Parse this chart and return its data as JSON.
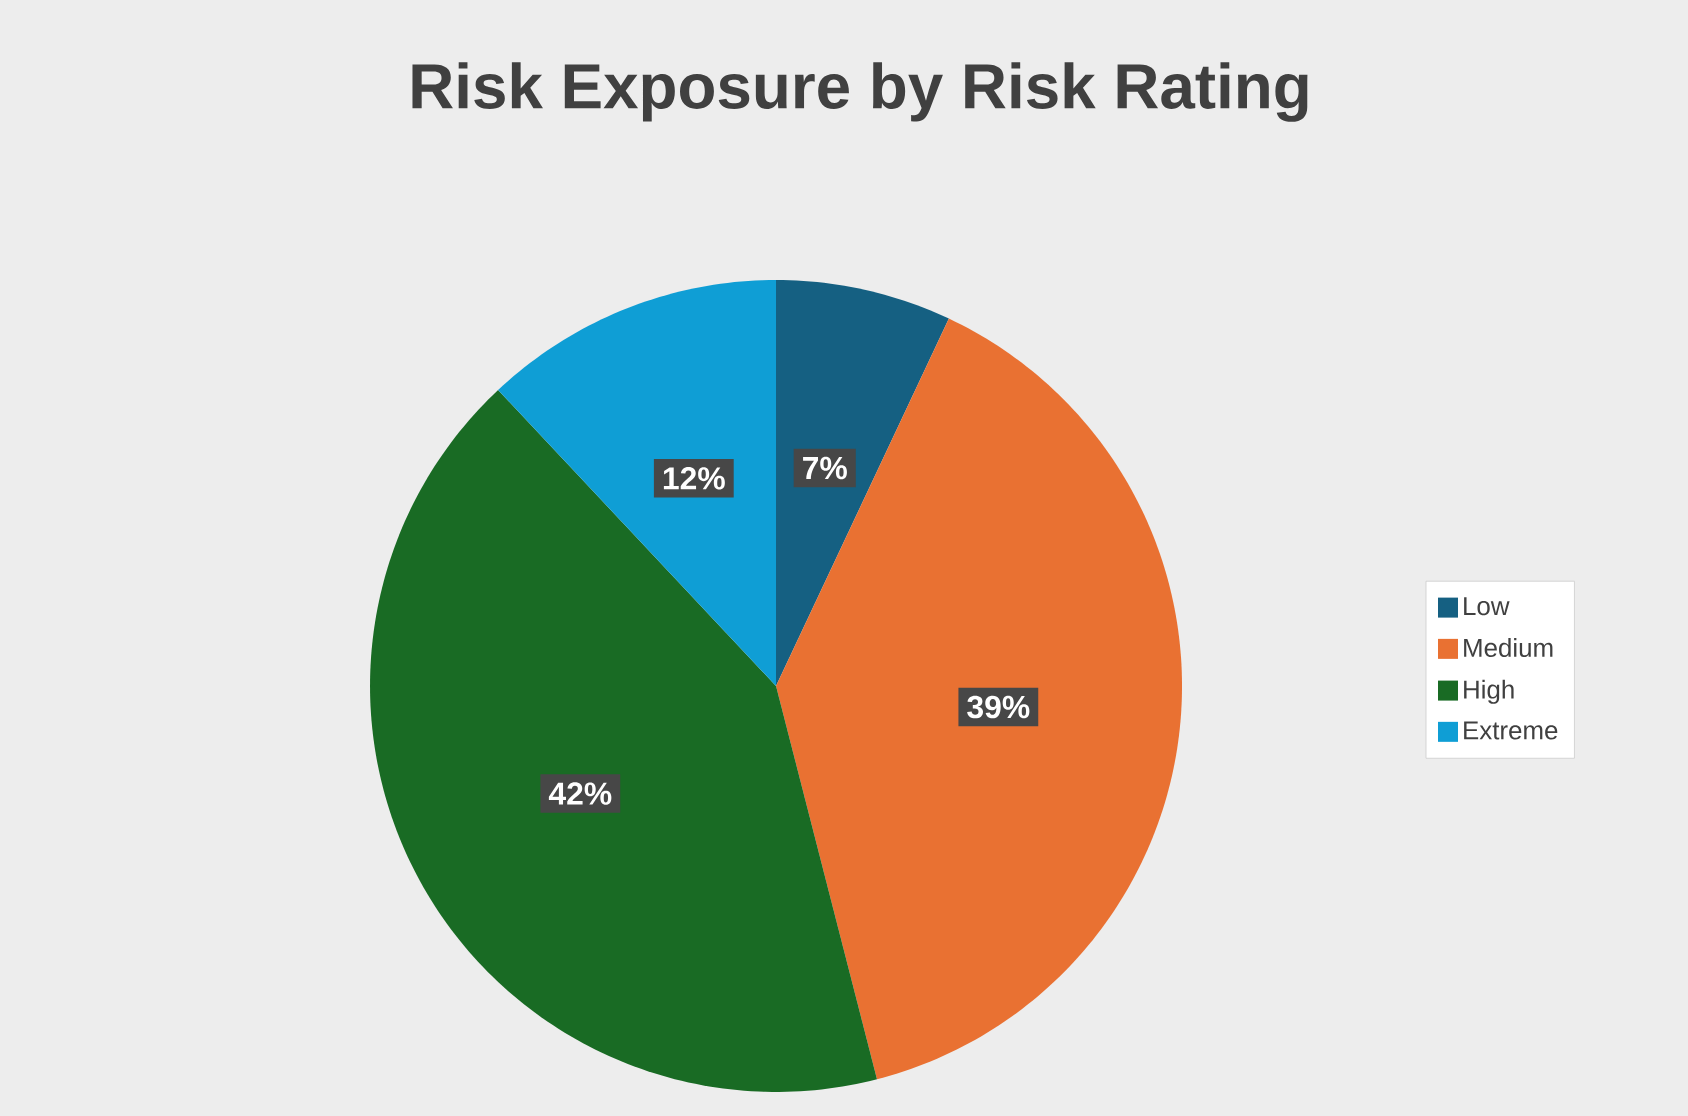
{
  "chart_data": {
    "type": "pie",
    "title": "Risk Exposure by Risk Rating",
    "categories": [
      "Low",
      "Medium",
      "High",
      "Extreme"
    ],
    "values": [
      7,
      39,
      42,
      12
    ],
    "colors": [
      "#156082",
      "#e97132",
      "#196b24",
      "#0f9ed5"
    ],
    "value_labels": [
      "7%",
      "39%",
      "42%",
      "12%"
    ],
    "legend": "right"
  }
}
